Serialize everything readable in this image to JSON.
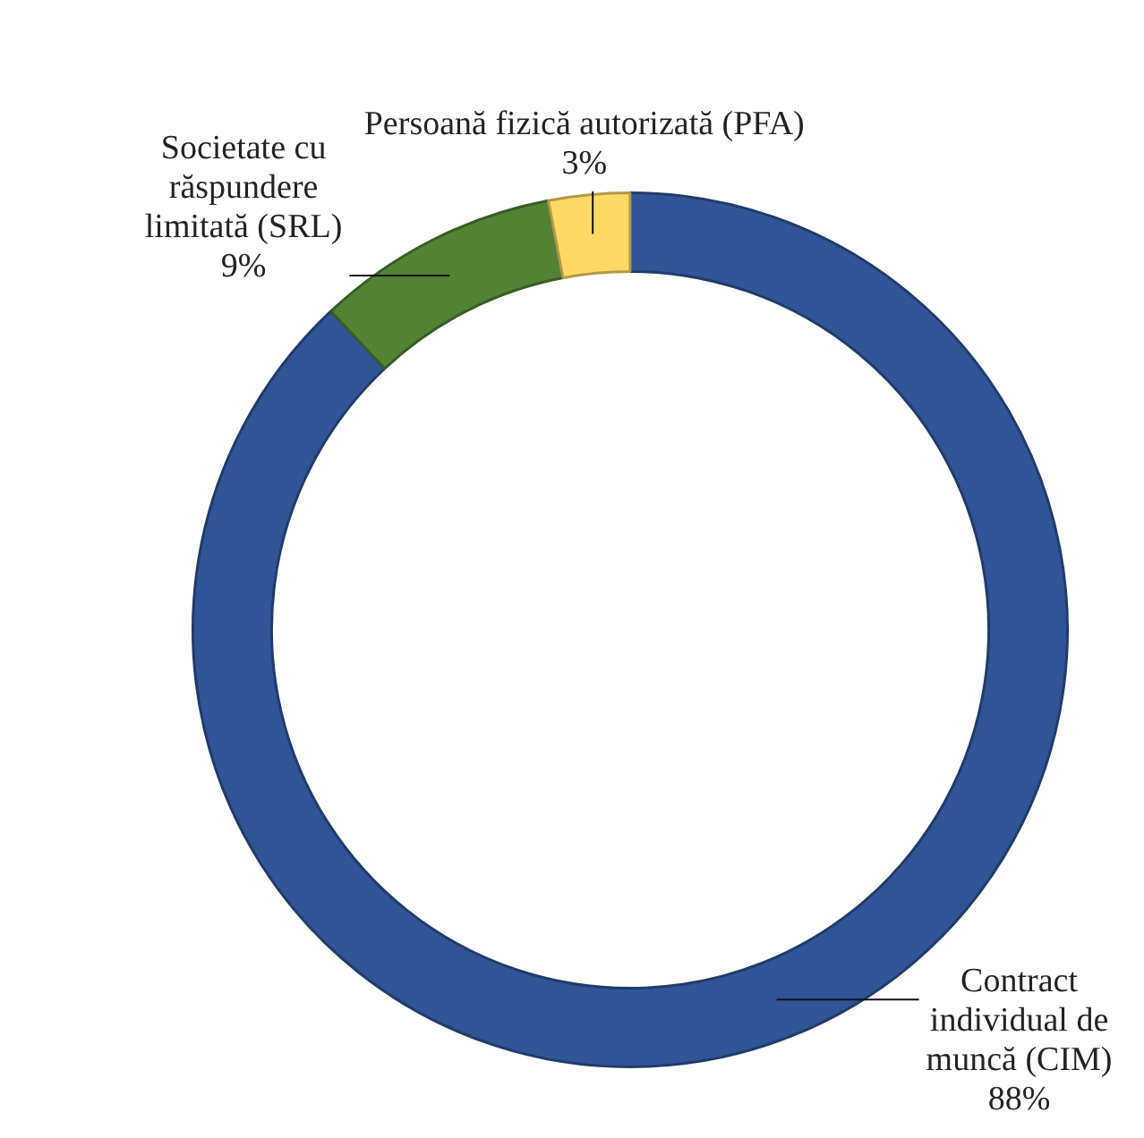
{
  "chart_data": {
    "type": "donut",
    "categories": [
      "Contract individual de muncă (CIM)",
      "Societate cu răspundere limitată (SRL)",
      "Persoană fizică autorizată (PFA)"
    ],
    "values": [
      88,
      9,
      3
    ],
    "colors": [
      "#2f5597",
      "#548235",
      "#ffd966"
    ],
    "value_labels": [
      "88%",
      "9%",
      "3%"
    ],
    "legend": false
  }
}
